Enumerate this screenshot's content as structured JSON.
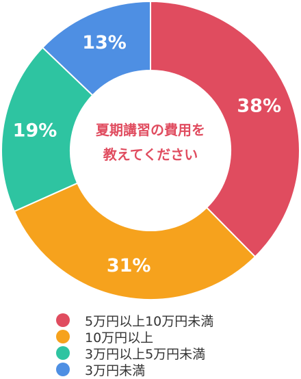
{
  "chart_data": {
    "type": "pie",
    "title": "夏期講習の費用を教えてください",
    "title_lines": [
      "夏期講習の費用を",
      "教えてください"
    ],
    "categories": [
      "5万円以上10万円未満",
      "10万円以上",
      "3万円以上5万円未満",
      "3万円未満"
    ],
    "values": [
      38,
      31,
      19,
      13
    ],
    "value_labels": [
      "38%",
      "31%",
      "19%",
      "13%"
    ],
    "colors": [
      "#e04c5f",
      "#f6a21d",
      "#2ec4a1",
      "#4e8fe3"
    ],
    "donut": true,
    "legend_position": "bottom"
  }
}
